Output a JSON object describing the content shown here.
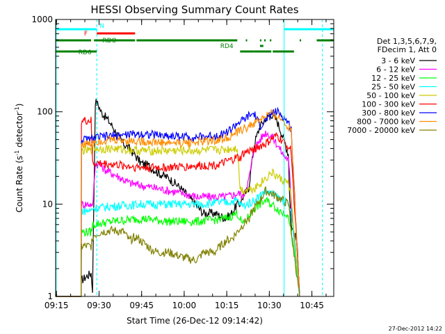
{
  "chart_data": {
    "type": "line",
    "title": "HESSI Observing Summary Count Rates",
    "xlabel": "Start Time (26-Dec-12 09:14:42)",
    "ylabel_main": "Count Rate (s",
    "ylabel_sup1": "-1",
    "ylabel_mid": " detector",
    "ylabel_sup2": "-1",
    "ylabel_end": ")",
    "y_scale": "log",
    "ylim": [
      1,
      1000
    ],
    "xlim_minutes": [
      0,
      98
    ],
    "x_ticks": [
      {
        "t": 0.3,
        "label": "09:15"
      },
      {
        "t": 15.3,
        "label": "09:30"
      },
      {
        "t": 30.3,
        "label": "09:45"
      },
      {
        "t": 45.3,
        "label": "10:00"
      },
      {
        "t": 60.3,
        "label": "10:15"
      },
      {
        "t": 75.3,
        "label": "10:30"
      },
      {
        "t": 90.3,
        "label": "10:45"
      }
    ],
    "y_ticks": [
      {
        "v": 1,
        "label": "1"
      },
      {
        "v": 10,
        "label": "10"
      },
      {
        "v": 100,
        "label": "100"
      },
      {
        "v": 1000,
        "label": "1000"
      }
    ],
    "legend_header": [
      "Det 1,3,5,6,7,9,",
      "FDecim 1, Att 0"
    ],
    "series": [
      {
        "name": "3 - 6 keV",
        "color": "#000000",
        "x": [
          0,
          9,
          9.1,
          12.5,
          13,
          14,
          15,
          16,
          18,
          20,
          22,
          24,
          26,
          28,
          30,
          33,
          36,
          40,
          44,
          48,
          52,
          56,
          60,
          62,
          64,
          65,
          66,
          68,
          70,
          72,
          74,
          76,
          78,
          80,
          82,
          82.5,
          83,
          85,
          86
        ],
        "y": [
          1,
          1,
          1.5,
          1.8,
          1.2,
          130,
          120,
          100,
          85,
          70,
          55,
          45,
          40,
          34,
          28,
          26,
          22,
          19,
          15,
          11,
          8,
          8,
          7,
          8,
          10,
          10,
          12,
          15,
          45,
          70,
          85,
          95,
          80,
          55,
          35,
          12,
          6,
          4,
          1
        ]
      },
      {
        "name": "6 - 12 keV",
        "color": "#ff00ff",
        "x": [
          0,
          9,
          9.1,
          12.5,
          13,
          14,
          16,
          18,
          22,
          26,
          30,
          35,
          40,
          45,
          50,
          55,
          60,
          64,
          65,
          66,
          68,
          70,
          72,
          74,
          76,
          78,
          80,
          82,
          82.5,
          83,
          86
        ],
        "y": [
          1,
          1,
          10,
          10,
          9,
          28,
          26,
          23,
          20,
          17,
          16,
          15,
          14,
          13,
          12,
          12,
          12,
          13,
          13,
          12,
          18,
          40,
          50,
          60,
          55,
          45,
          35,
          30,
          20,
          10,
          1
        ]
      },
      {
        "name": "12 - 25 keV",
        "color": "#00ff00",
        "x": [
          0,
          9,
          9.1,
          12.5,
          13,
          20,
          30,
          40,
          50,
          60,
          64,
          65,
          66,
          70,
          74,
          76,
          78,
          80,
          82,
          82.5,
          83,
          86
        ],
        "y": [
          1,
          1,
          5,
          5,
          6,
          6.5,
          7,
          6.5,
          6.5,
          7,
          8,
          7,
          6,
          9,
          11,
          10,
          9,
          8,
          8,
          6,
          5,
          1
        ]
      },
      {
        "name": "25 - 50 keV",
        "color": "#00ffff",
        "x": [
          0,
          9,
          9.1,
          12.5,
          13,
          20,
          30,
          40,
          50,
          60,
          64,
          65,
          66,
          70,
          74,
          76,
          78,
          80,
          82,
          82.5,
          83,
          86
        ],
        "y": [
          1,
          1,
          8.5,
          8.5,
          9,
          9.5,
          10,
          10,
          10,
          10.5,
          11,
          10,
          9.5,
          11,
          14,
          13,
          12,
          11,
          10,
          9,
          8,
          1
        ]
      },
      {
        "name": "50 - 100 keV",
        "color": "#cccc00",
        "x": [
          0,
          9,
          9.1,
          12.5,
          13,
          20,
          30,
          40,
          50,
          60,
          64,
          65,
          66,
          70,
          74,
          76,
          78,
          80,
          82,
          82.5,
          83,
          86
        ],
        "y": [
          1,
          1,
          38,
          38,
          40,
          40,
          38,
          38,
          38,
          39,
          41,
          15,
          14,
          15,
          19,
          22,
          20,
          18,
          17,
          14,
          12,
          1
        ]
      },
      {
        "name": "100 - 300 keV",
        "color": "#ff0000",
        "x": [
          0,
          9,
          9.1,
          12.5,
          13,
          20,
          30,
          40,
          50,
          58,
          62,
          64,
          65,
          66,
          70,
          74,
          76,
          78,
          80,
          82,
          82.5,
          83,
          86
        ],
        "y": [
          1,
          1,
          80,
          80,
          28,
          27,
          25,
          25,
          26,
          27,
          30,
          32,
          31,
          35,
          40,
          45,
          50,
          55,
          48,
          42,
          40,
          38,
          1
        ]
      },
      {
        "name": "300 - 800 keV",
        "color": "#0000ff",
        "x": [
          0,
          9,
          9.1,
          12.5,
          13,
          20,
          30,
          40,
          50,
          58,
          62,
          64,
          65,
          66,
          68,
          70,
          72,
          74,
          76,
          78,
          80,
          82,
          82.5,
          83,
          86
        ],
        "y": [
          1,
          1,
          50,
          50,
          52,
          55,
          58,
          55,
          53,
          56,
          65,
          75,
          78,
          80,
          90,
          95,
          70,
          80,
          95,
          100,
          90,
          75,
          70,
          65,
          1
        ]
      },
      {
        "name": "800 - 7000 keV",
        "color": "#ff8c00",
        "x": [
          0,
          9,
          9.1,
          12.5,
          13,
          20,
          30,
          40,
          50,
          58,
          62,
          64,
          66,
          70,
          74,
          76,
          78,
          80,
          82,
          82.5,
          83,
          86
        ],
        "y": [
          1,
          1,
          45,
          45,
          48,
          50,
          48,
          46,
          47,
          50,
          55,
          60,
          65,
          75,
          90,
          95,
          90,
          80,
          70,
          68,
          66,
          1
        ]
      },
      {
        "name": "7000 - 20000 keV",
        "color": "#808000",
        "x": [
          0,
          9,
          9.1,
          12.5,
          13,
          16,
          20,
          24,
          26,
          28,
          30,
          34,
          36,
          40,
          44,
          48,
          50,
          52,
          56,
          58,
          60,
          62,
          64,
          65,
          66,
          68,
          70,
          72,
          74,
          76,
          78,
          80,
          82,
          82.5,
          83,
          86
        ],
        "y": [
          1,
          1,
          3.5,
          3.5,
          4.5,
          5,
          5.2,
          5,
          4,
          4.5,
          4,
          3.2,
          3,
          3,
          2.7,
          2.5,
          2.5,
          3,
          3,
          3.5,
          4,
          4.2,
          5,
          5.5,
          6,
          7,
          9,
          11,
          14,
          13,
          12,
          11,
          10,
          8,
          5,
          1
        ]
      }
    ],
    "flags": [
      {
        "label": "N",
        "color": "#00ffff"
      },
      {
        "label": "F",
        "color": "#ff0000"
      },
      {
        "label": "RDO",
        "color": "#008000"
      },
      {
        "label": "RD4",
        "color": "#008000"
      },
      {
        "label": "RD6",
        "color": "#008000"
      }
    ]
  },
  "timestamp": "27-Dec-2012 14:22"
}
